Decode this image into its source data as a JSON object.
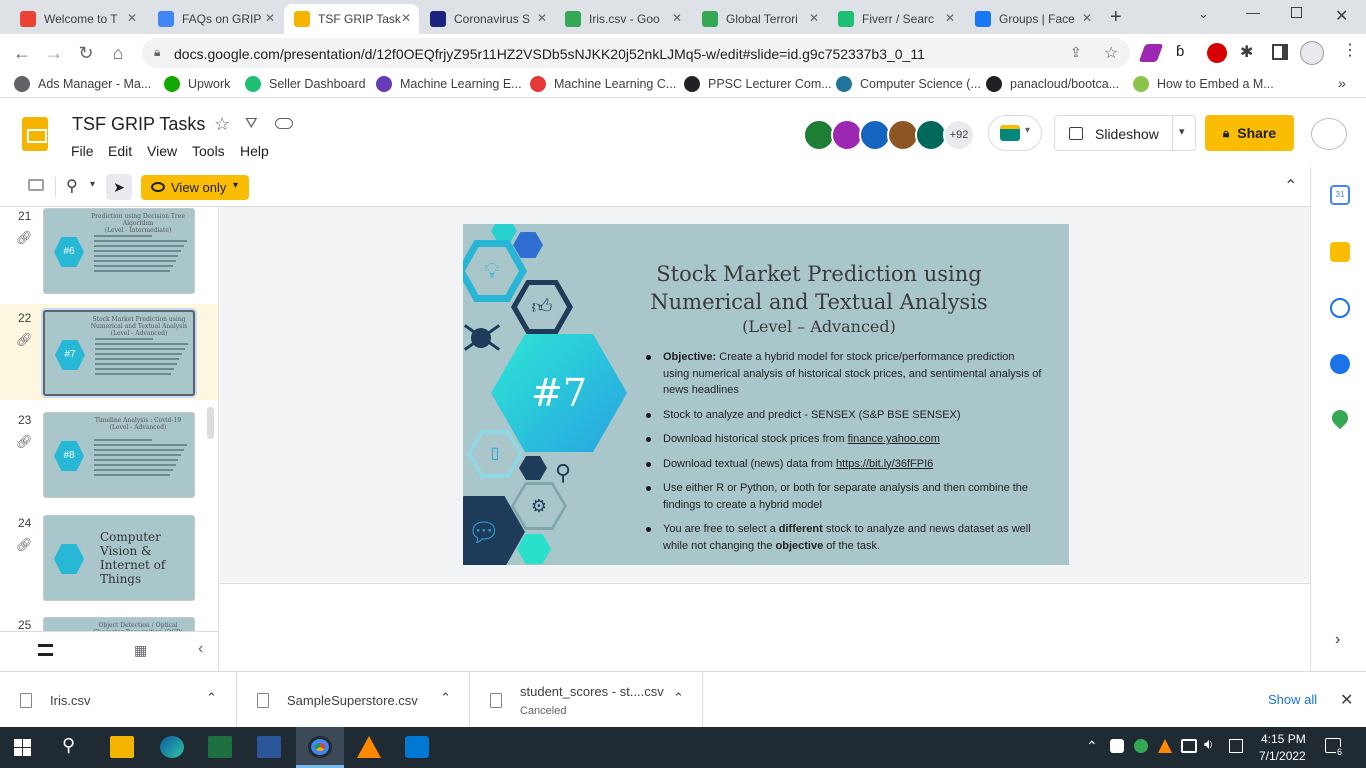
{
  "browser": {
    "tabs": [
      {
        "label": "Welcome to T",
        "favicon": "gmail-icon",
        "color": "#ea4335"
      },
      {
        "label": "FAQs on GRIP",
        "favicon": "docs-icon",
        "color": "#4285f4"
      },
      {
        "label": "TSF GRIP Task",
        "favicon": "slides-icon",
        "color": "#f4b400",
        "active": true
      },
      {
        "label": "Coronavirus S",
        "favicon": "data-icon",
        "color": "#1a237e"
      },
      {
        "label": "Iris.csv - Goo",
        "favicon": "drive-icon",
        "color": "#34a853"
      },
      {
        "label": "Global Terrori",
        "favicon": "drive-icon",
        "color": "#34a853"
      },
      {
        "label": "Fiverr / Searc",
        "favicon": "fiverr-icon",
        "color": "#1dbf73"
      },
      {
        "label": "Groups | Face",
        "favicon": "facebook-icon",
        "color": "#1877f2"
      }
    ],
    "url": "docs.google.com/presentation/d/12f0OEQfrjyZ95r11HZ2VSDb5sNJKK20j52nkLJMq5-w/edit#slide=id.g9c752337b3_0_11",
    "bookmarks": [
      {
        "label": "Ads Manager - Ma...",
        "color": "#5f6368"
      },
      {
        "label": "Upwork",
        "color": "#14a800"
      },
      {
        "label": "Seller Dashboard",
        "color": "#1dbf73"
      },
      {
        "label": "Machine Learning E...",
        "color": "#673ab7"
      },
      {
        "label": "Machine Learning C...",
        "color": "#e53935"
      },
      {
        "label": "PPSC Lecturer Com...",
        "color": "#202124"
      },
      {
        "label": "Computer Science (...",
        "color": "#21759b"
      },
      {
        "label": "panacloud/bootca...",
        "color": "#202124"
      },
      {
        "label": "How to Embed a M...",
        "color": "#8bc34a"
      }
    ]
  },
  "app": {
    "title": "TSF GRIP Tasks",
    "menus": [
      "File",
      "Edit",
      "View",
      "Tools",
      "Help"
    ],
    "collaborators_more": "+92",
    "slideshow_label": "Slideshow",
    "share_label": "Share",
    "view_mode": "View only"
  },
  "filmstrip": [
    {
      "num": "21",
      "title": "Prediction using Decision Tree Algorithm",
      "level": "(Level - Intermediate)",
      "tag": "#6"
    },
    {
      "num": "22",
      "title": "Stock Market Prediction using Numerical and Textual Analysis",
      "level": "(Level - Advanced)",
      "tag": "#7",
      "selected": true
    },
    {
      "num": "23",
      "title": "Timeline Analysis : Covid-19",
      "level": "(Level - Advanced)",
      "tag": "#8"
    },
    {
      "num": "24",
      "title": "Computer Vision & Internet of Things",
      "level": "",
      "tag": ""
    },
    {
      "num": "25",
      "title": "Object Detection / Optical Character Recognition (OCR)",
      "level": "",
      "tag": ""
    }
  ],
  "slide": {
    "title": "Stock Market Prediction using Numerical and Textual Analysis",
    "level": "(Level – Advanced)",
    "tag": "#7",
    "bullets": [
      {
        "bold": "Objective:",
        "text": " Create a hybrid model for stock price/performance prediction using numerical analysis of historical stock prices, and sentimental analysis of news headlines"
      },
      {
        "text": "Stock to analyze and predict - SENSEX (S&P BSE SENSEX)"
      },
      {
        "text": "Download historical stock prices from ",
        "link": "finance.yahoo.com"
      },
      {
        "text": "Download textual (news) data from ",
        "link": "https://bit.ly/36fFPI6"
      },
      {
        "text": "Use either R or Python, or both for separate analysis and then combine the findings to create a hybrid model"
      },
      {
        "text1": "You are free to select a ",
        "b1": "different",
        "text2": " stock to analyze and news dataset as well while not changing the ",
        "b2": "objective",
        "text3": " of the task."
      }
    ]
  },
  "downloads": [
    {
      "name": "Iris.csv",
      "sub": ""
    },
    {
      "name": "SampleSuperstore.csv",
      "sub": ""
    },
    {
      "name": "student_scores - st....csv",
      "sub": "Canceled"
    }
  ],
  "downloads_show_all": "Show all",
  "taskbar": {
    "time": "4:15 PM",
    "date": "7/1/2022",
    "notifications": "6"
  }
}
